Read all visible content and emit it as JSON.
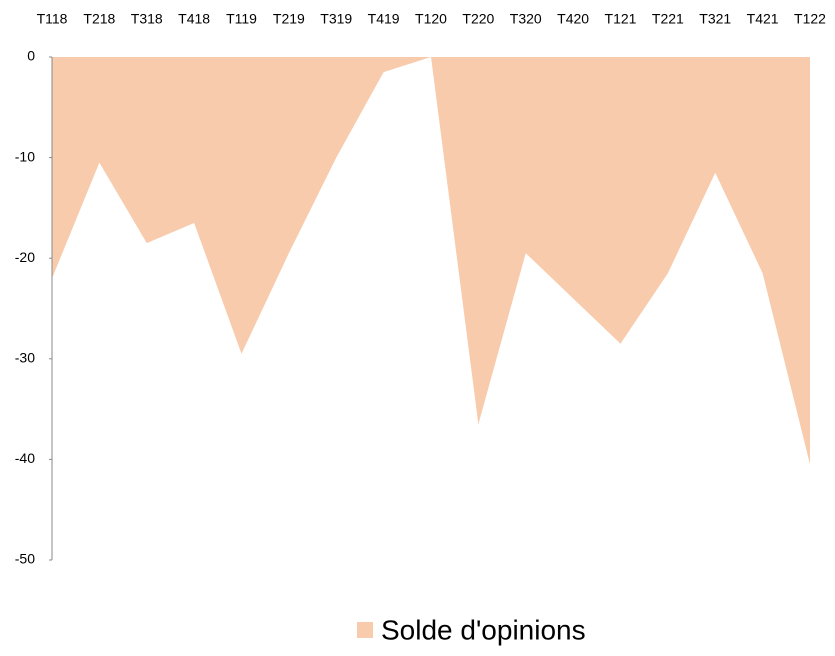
{
  "chart_data": {
    "type": "area",
    "categories": [
      "T118",
      "T218",
      "T318",
      "T418",
      "T119",
      "T219",
      "T319",
      "T419",
      "T120",
      "T220",
      "T320",
      "T420",
      "T121",
      "T221",
      "T321",
      "T421",
      "T122"
    ],
    "series": [
      {
        "name": "Solde d'opinions",
        "color": "#f8cbad",
        "values": [
          -22,
          -10.5,
          -18.5,
          -16.5,
          -29.5,
          -19.5,
          -10,
          -1.5,
          0,
          -36.5,
          -19.5,
          -24,
          -28.5,
          -21.5,
          -11.5,
          -21.5,
          -40.5
        ]
      }
    ],
    "ylim": [
      -50,
      0
    ],
    "yticks": [
      0,
      -10,
      -20,
      -30,
      -40,
      -50
    ]
  }
}
